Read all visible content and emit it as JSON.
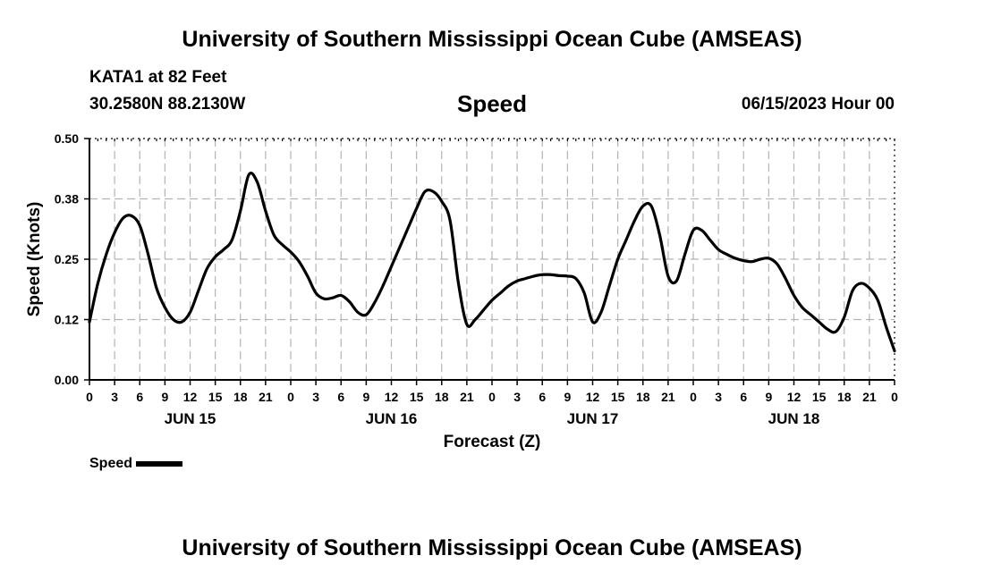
{
  "header": {
    "title": "University of Southern Mississippi Ocean Cube (AMSEAS)",
    "station": "KATA1 at 82 Feet",
    "coords": "30.2580N  88.2130W",
    "chart_title": "Speed",
    "timestamp": "06/15/2023 Hour 00"
  },
  "footer": {
    "title": "University of Southern Mississippi Ocean Cube (AMSEAS)"
  },
  "legend": {
    "label": "Speed"
  },
  "colors": {
    "line": "#000000",
    "grid": "#b4b4b4",
    "background": "#ffffff"
  },
  "chart_data": {
    "type": "line",
    "title": "Speed",
    "xlabel": "Forecast (Z)",
    "ylabel": "Speed (Knots)",
    "ylim": [
      0,
      0.5
    ],
    "xlim": [
      0,
      96
    ],
    "yticks": [
      0.0,
      0.125,
      0.25,
      0.375,
      0.5
    ],
    "ytick_labels": [
      "0.00",
      "0.12",
      "0.25",
      "0.38",
      "0.50"
    ],
    "xticks": [
      0,
      3,
      6,
      9,
      12,
      15,
      18,
      21,
      24,
      27,
      30,
      33,
      36,
      39,
      42,
      45,
      48,
      51,
      54,
      57,
      60,
      63,
      66,
      69,
      72,
      75,
      78,
      81,
      84,
      87,
      90,
      93,
      96
    ],
    "xtick_labels": [
      "0",
      "3",
      "6",
      "9",
      "12",
      "15",
      "18",
      "21",
      "0",
      "3",
      "6",
      "9",
      "12",
      "15",
      "18",
      "21",
      "0",
      "3",
      "6",
      "9",
      "12",
      "15",
      "18",
      "21",
      "0",
      "3",
      "6",
      "9",
      "12",
      "15",
      "18",
      "21",
      "0"
    ],
    "day_labels": [
      {
        "hour": 12,
        "label": "JUN 15"
      },
      {
        "hour": 36,
        "label": "JUN 16"
      },
      {
        "hour": 60,
        "label": "JUN 17"
      },
      {
        "hour": 84,
        "label": "JUN 18"
      }
    ],
    "grid": true,
    "legend_position": "bottom-left",
    "series": [
      {
        "name": "Speed",
        "x": [
          0,
          1,
          2,
          3,
          4,
          5,
          6,
          7,
          8,
          9,
          10,
          11,
          12,
          13,
          14,
          15,
          16,
          17,
          18,
          19,
          20,
          21,
          22,
          23,
          24,
          25,
          26,
          27,
          28,
          29,
          30,
          31,
          32,
          33,
          34,
          35,
          36,
          37,
          38,
          39,
          40,
          41,
          42,
          43,
          44,
          45,
          46,
          47,
          48,
          49,
          50,
          51,
          52,
          53,
          54,
          55,
          56,
          57,
          58,
          59,
          60,
          61,
          62,
          63,
          64,
          65,
          66,
          67,
          68,
          69,
          70,
          71,
          72,
          73,
          74,
          75,
          76,
          77,
          78,
          79,
          80,
          81,
          82,
          83,
          84,
          85,
          86,
          87,
          88,
          89,
          90,
          91,
          92,
          93,
          94,
          95,
          96
        ],
        "values": [
          0.12,
          0.2,
          0.26,
          0.305,
          0.335,
          0.34,
          0.32,
          0.26,
          0.19,
          0.15,
          0.125,
          0.12,
          0.14,
          0.185,
          0.23,
          0.255,
          0.27,
          0.29,
          0.35,
          0.425,
          0.41,
          0.35,
          0.3,
          0.28,
          0.265,
          0.245,
          0.215,
          0.18,
          0.168,
          0.17,
          0.175,
          0.162,
          0.14,
          0.135,
          0.16,
          0.195,
          0.235,
          0.275,
          0.315,
          0.355,
          0.39,
          0.39,
          0.37,
          0.33,
          0.2,
          0.115,
          0.125,
          0.145,
          0.165,
          0.18,
          0.195,
          0.205,
          0.21,
          0.215,
          0.218,
          0.218,
          0.216,
          0.215,
          0.21,
          0.18,
          0.12,
          0.14,
          0.195,
          0.25,
          0.29,
          0.33,
          0.36,
          0.36,
          0.3,
          0.215,
          0.205,
          0.26,
          0.31,
          0.31,
          0.29,
          0.27,
          0.26,
          0.252,
          0.247,
          0.245,
          0.25,
          0.252,
          0.24,
          0.21,
          0.175,
          0.15,
          0.135,
          0.12,
          0.105,
          0.1,
          0.13,
          0.185,
          0.2,
          0.19,
          0.165,
          0.11,
          0.06
        ]
      }
    ]
  }
}
